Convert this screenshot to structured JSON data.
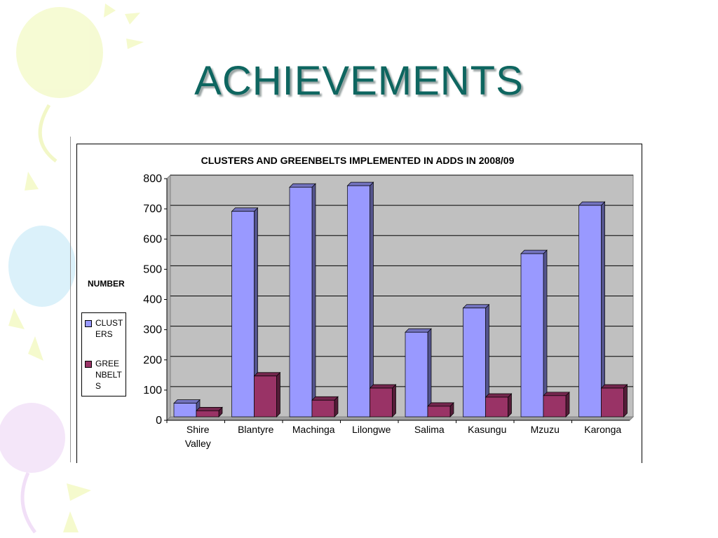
{
  "slide": {
    "title": "ACHIEVEMENTS"
  },
  "chart_data": {
    "type": "bar",
    "title": "CLUSTERS AND GREENBELTS IMPLEMENTED IN ADDS IN 2008/09",
    "ylabel": "NUMBER",
    "xlabel": "",
    "categories": [
      "Shire Valley",
      "Blantyre",
      "Machinga",
      "Lilongwe",
      "Salima",
      "Kasungu",
      "Mzuzu",
      "Karonga"
    ],
    "category_lines": [
      [
        "Shire",
        "Valley"
      ],
      [
        "Blantyre"
      ],
      [
        "Machinga"
      ],
      [
        "Lilongwe"
      ],
      [
        "Salima"
      ],
      [
        "Kasungu"
      ],
      [
        "Mzuzu"
      ],
      [
        "Karonga"
      ]
    ],
    "series": [
      {
        "name": "CLUSTERS",
        "legend_lines": [
          "CLUST",
          "ERS"
        ],
        "color": "#9999ff",
        "values": [
          45,
          680,
          760,
          765,
          280,
          360,
          540,
          700
        ]
      },
      {
        "name": "GREENBELTS",
        "legend_lines": [
          "GREE",
          "NBELT",
          "S"
        ],
        "color": "#993366",
        "values": [
          20,
          135,
          55,
          95,
          35,
          65,
          70,
          95
        ]
      }
    ],
    "ylim": [
      0,
      800
    ],
    "yticks": [
      0,
      100,
      200,
      300,
      400,
      500,
      600,
      700,
      800
    ],
    "grid": true,
    "legend_position": "left",
    "plot_bg": "#c0c0c0"
  }
}
